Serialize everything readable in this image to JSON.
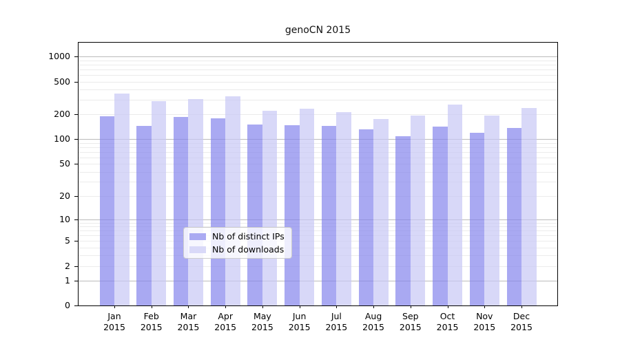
{
  "chart_data": {
    "type": "bar",
    "title": "genoCN 2015",
    "categories": [
      "Jan",
      "Feb",
      "Mar",
      "Apr",
      "May",
      "Jun",
      "Jul",
      "Aug",
      "Sep",
      "Oct",
      "Nov",
      "Dec"
    ],
    "year_label": "2015",
    "series": [
      {
        "name": "Nb of distinct IPs",
        "fill": "rgba(133,133,236,0.7)",
        "swatch": "#aaaaf2",
        "values": [
          190,
          145,
          187,
          181,
          151,
          147,
          145,
          131,
          110,
          143,
          119,
          137
        ]
      },
      {
        "name": "Nb of downloads",
        "fill": "rgba(200,200,245,0.7)",
        "swatch": "#d9d9f8",
        "values": [
          360,
          290,
          308,
          330,
          222,
          237,
          214,
          177,
          195,
          265,
          193,
          240
        ]
      }
    ],
    "y_axis": {
      "scale": "log1p",
      "ticks": [
        0,
        1,
        2,
        5,
        10,
        20,
        50,
        100,
        200,
        500,
        1000
      ],
      "major_gridlines": [
        1,
        10,
        100,
        1000
      ]
    },
    "legend_position": "bottom-center",
    "grid": true
  }
}
